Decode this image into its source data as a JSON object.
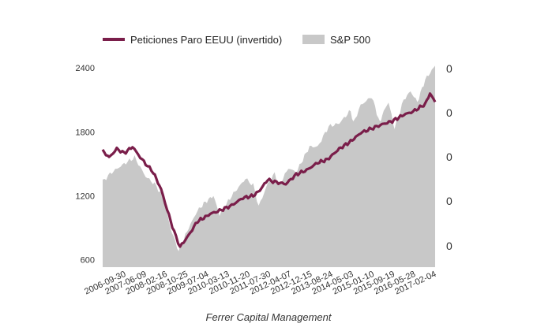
{
  "chart_data": {
    "type": "line",
    "caption": "Ferrer Capital Management",
    "legend": [
      {
        "label": "Peticiones Paro EEUU (invertido)",
        "color": "#7a1e4a",
        "style": "line"
      },
      {
        "label": "S&P 500",
        "color": "#c8c8c8",
        "style": "area"
      }
    ],
    "legend_position": "top",
    "grid": false,
    "left_axis": {
      "ticks": [
        "2400",
        "1800",
        "1200",
        "600"
      ],
      "tick_values": [
        2400,
        1800,
        1200,
        600
      ],
      "ylim": [
        530,
        2460
      ]
    },
    "right_axis": {
      "ticks": [
        "0",
        "0",
        "0",
        "0",
        "0"
      ]
    },
    "x_tick_labels": [
      "2006-09-30",
      "2007-06-09",
      "2008-02-16",
      "2008-10-25",
      "2009-07-04",
      "2010-03-13",
      "2010-11-20",
      "2011-07-30",
      "2012-04-07",
      "2012-12-15",
      "2013-08-24",
      "2014-05-03",
      "2015-01-10",
      "2015-09-19",
      "2016-05-28",
      "2017-02-04"
    ],
    "x_range": [
      "2006-09-30",
      "2017-05-31"
    ],
    "series": [
      {
        "name": "S&P 500",
        "type": "area",
        "color": "#c8c8c8",
        "points": [
          [
            "2006-09-30",
            1335
          ],
          [
            "2007-01-15",
            1420
          ],
          [
            "2007-06-09",
            1500
          ],
          [
            "2007-10-10",
            1560
          ],
          [
            "2008-02-16",
            1380
          ],
          [
            "2008-06-01",
            1310
          ],
          [
            "2008-09-15",
            1180
          ],
          [
            "2008-12-01",
            900
          ],
          [
            "2009-03-09",
            680
          ],
          [
            "2009-07-04",
            900
          ],
          [
            "2009-10-15",
            1060
          ],
          [
            "2010-01-15",
            1140
          ],
          [
            "2010-04-20",
            1200
          ],
          [
            "2010-07-01",
            1020
          ],
          [
            "2010-11-20",
            1200
          ],
          [
            "2011-04-30",
            1360
          ],
          [
            "2011-07-30",
            1300
          ],
          [
            "2011-10-03",
            1100
          ],
          [
            "2012-01-15",
            1310
          ],
          [
            "2012-04-07",
            1410
          ],
          [
            "2012-06-01",
            1300
          ],
          [
            "2012-09-15",
            1460
          ],
          [
            "2012-12-15",
            1420
          ],
          [
            "2013-05-20",
            1660
          ],
          [
            "2013-08-24",
            1660
          ],
          [
            "2013-12-31",
            1850
          ],
          [
            "2014-05-03",
            1880
          ],
          [
            "2014-09-15",
            2000
          ],
          [
            "2014-10-15",
            1880
          ],
          [
            "2015-01-10",
            2050
          ],
          [
            "2015-05-20",
            2130
          ],
          [
            "2015-08-24",
            1880
          ],
          [
            "2015-09-19",
            1960
          ],
          [
            "2015-12-01",
            2080
          ],
          [
            "2016-02-11",
            1830
          ],
          [
            "2016-05-28",
            2100
          ],
          [
            "2016-08-15",
            2180
          ],
          [
            "2016-11-04",
            2080
          ],
          [
            "2017-02-04",
            2290
          ],
          [
            "2017-05-31",
            2420
          ]
        ]
      },
      {
        "name": "Peticiones Paro EEUU (invertido)",
        "type": "line",
        "color": "#7a1e4a",
        "points": [
          [
            "2006-09-30",
            1620
          ],
          [
            "2006-12-15",
            1560
          ],
          [
            "2007-03-15",
            1640
          ],
          [
            "2007-06-09",
            1600
          ],
          [
            "2007-09-15",
            1660
          ],
          [
            "2007-12-15",
            1560
          ],
          [
            "2008-02-16",
            1500
          ],
          [
            "2008-05-15",
            1420
          ],
          [
            "2008-08-15",
            1260
          ],
          [
            "2008-10-25",
            1070
          ],
          [
            "2009-01-15",
            860
          ],
          [
            "2009-03-25",
            720
          ],
          [
            "2009-07-04",
            830
          ],
          [
            "2009-10-15",
            960
          ],
          [
            "2010-01-15",
            1000
          ],
          [
            "2010-03-13",
            1030
          ],
          [
            "2010-07-01",
            1060
          ],
          [
            "2010-11-20",
            1110
          ],
          [
            "2011-04-01",
            1180
          ],
          [
            "2011-07-30",
            1200
          ],
          [
            "2011-10-15",
            1250
          ],
          [
            "2012-01-15",
            1350
          ],
          [
            "2012-04-07",
            1330
          ],
          [
            "2012-08-15",
            1310
          ],
          [
            "2012-12-15",
            1400
          ],
          [
            "2013-04-15",
            1440
          ],
          [
            "2013-08-24",
            1510
          ],
          [
            "2013-12-15",
            1540
          ],
          [
            "2014-05-03",
            1640
          ],
          [
            "2014-09-15",
            1710
          ],
          [
            "2015-01-10",
            1790
          ],
          [
            "2015-05-15",
            1830
          ],
          [
            "2015-09-19",
            1870
          ],
          [
            "2016-01-15",
            1900
          ],
          [
            "2016-05-28",
            1960
          ],
          [
            "2016-09-15",
            1990
          ],
          [
            "2017-02-04",
            2060
          ],
          [
            "2017-04-01",
            2160
          ],
          [
            "2017-05-31",
            2080
          ]
        ]
      }
    ]
  }
}
